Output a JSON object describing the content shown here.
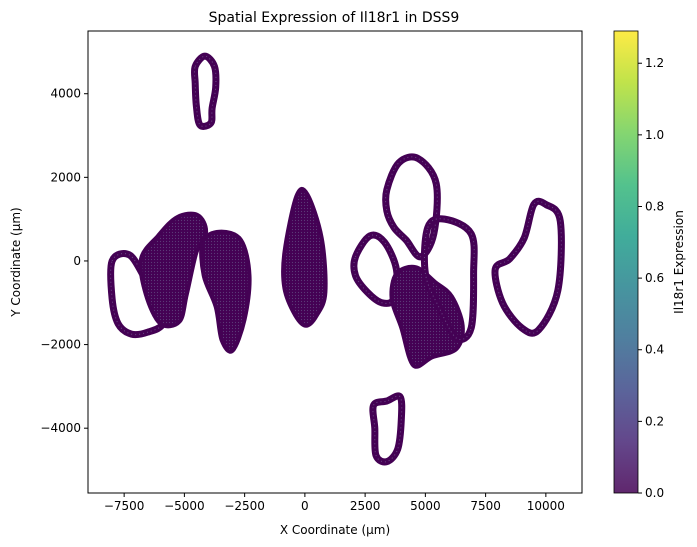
{
  "chart_data": {
    "type": "scatter",
    "title": "Spatial Expression of Il18r1 in DSS9",
    "xlabel": "X Coordinate (µm)",
    "ylabel": "Y Coordinate (µm)",
    "xlim": [
      -9000,
      11500
    ],
    "ylim": [
      -5550,
      5500
    ],
    "xticks": [
      -7500,
      -5000,
      -2500,
      0,
      2500,
      5000,
      7500,
      10000
    ],
    "xtick_labels": [
      "−7500",
      "−5000",
      "−2500",
      "0",
      "2500",
      "5000",
      "7500",
      "10000"
    ],
    "yticks": [
      -4000,
      -2000,
      0,
      2000,
      4000
    ],
    "ytick_labels": [
      "−4000",
      "−2000",
      "0",
      "2000",
      "4000"
    ],
    "grid": false,
    "colormap": "viridis",
    "point_color": "#440154",
    "colorbar": {
      "label": "Il18r1 Expression",
      "range": [
        0,
        1.29
      ],
      "ticks": [
        0.0,
        0.2,
        0.4,
        0.6,
        0.8,
        1.0,
        1.2
      ],
      "tick_labels": [
        "0.0",
        "0.2",
        "0.4",
        "0.6",
        "0.8",
        "1.0",
        "1.2"
      ],
      "colors": [
        "#440154",
        "#482777",
        "#3e4989",
        "#31688e",
        "#26828e",
        "#1f9e89",
        "#35b779",
        "#6ece58",
        "#b5de2b",
        "#fde725"
      ]
    },
    "tissue_sections": [
      {
        "name": "top-left",
        "type": "ring",
        "points": [
          [
            -4550,
            4650
          ],
          [
            -4150,
            4900
          ],
          [
            -3750,
            4650
          ],
          [
            -3700,
            4150
          ],
          [
            -3850,
            3650
          ],
          [
            -3900,
            3300
          ],
          [
            -4350,
            3250
          ],
          [
            -4500,
            3700
          ],
          [
            -4550,
            4250
          ]
        ]
      },
      {
        "name": "left-outer",
        "type": "ring",
        "points": [
          [
            -8000,
            0
          ],
          [
            -7300,
            150
          ],
          [
            -6700,
            -350
          ],
          [
            -6100,
            -1000
          ],
          [
            -5900,
            -1500
          ],
          [
            -6500,
            -1700
          ],
          [
            -7200,
            -1750
          ],
          [
            -7750,
            -1500
          ],
          [
            -8000,
            -900
          ]
        ]
      },
      {
        "name": "left-cluster",
        "type": "blob",
        "points": [
          [
            -6800,
            50
          ],
          [
            -6100,
            600
          ],
          [
            -5300,
            1050
          ],
          [
            -4450,
            1100
          ],
          [
            -4100,
            700
          ],
          [
            -4500,
            200
          ],
          [
            -4900,
            -800
          ],
          [
            -5200,
            -1450
          ],
          [
            -6000,
            -1500
          ],
          [
            -6600,
            -800
          ]
        ]
      },
      {
        "name": "left-inner",
        "type": "blob",
        "points": [
          [
            -4250,
            450
          ],
          [
            -3550,
            700
          ],
          [
            -2650,
            500
          ],
          [
            -2300,
            -350
          ],
          [
            -2500,
            -1400
          ],
          [
            -3000,
            -2150
          ],
          [
            -3450,
            -1900
          ],
          [
            -3700,
            -1100
          ],
          [
            -4200,
            -350
          ]
        ]
      },
      {
        "name": "center",
        "type": "blob",
        "points": [
          [
            -850,
            200
          ],
          [
            -350,
            1550
          ],
          [
            100,
            1600
          ],
          [
            700,
            550
          ],
          [
            850,
            -750
          ],
          [
            500,
            -1300
          ],
          [
            50,
            -1550
          ],
          [
            -400,
            -1300
          ],
          [
            -850,
            -650
          ]
        ]
      },
      {
        "name": "center-right-ring",
        "type": "ring",
        "points": [
          [
            2100,
            100
          ],
          [
            2700,
            600
          ],
          [
            3300,
            450
          ],
          [
            3800,
            -200
          ],
          [
            3700,
            -900
          ],
          [
            3200,
            -1000
          ],
          [
            2600,
            -750
          ],
          [
            2100,
            -350
          ]
        ]
      },
      {
        "name": "right-top",
        "type": "ring",
        "points": [
          [
            3400,
            1700
          ],
          [
            3900,
            2350
          ],
          [
            4700,
            2450
          ],
          [
            5450,
            1850
          ],
          [
            5350,
            650
          ],
          [
            4800,
            100
          ],
          [
            4200,
            500
          ],
          [
            3700,
            800
          ],
          [
            3400,
            1200
          ]
        ]
      },
      {
        "name": "right-middle",
        "type": "blob",
        "points": [
          [
            3800,
            -300
          ],
          [
            4600,
            -150
          ],
          [
            5400,
            -500
          ],
          [
            6100,
            -850
          ],
          [
            6550,
            -1550
          ],
          [
            6300,
            -2100
          ],
          [
            5300,
            -2300
          ],
          [
            4500,
            -2500
          ],
          [
            4000,
            -1600
          ],
          [
            3600,
            -900
          ]
        ]
      },
      {
        "name": "right-lower-ring",
        "type": "ring",
        "points": [
          [
            5100,
            800
          ],
          [
            5800,
            1000
          ],
          [
            6900,
            650
          ],
          [
            7000,
            -300
          ],
          [
            6900,
            -1600
          ],
          [
            6300,
            -1850
          ],
          [
            5600,
            -1150
          ],
          [
            5000,
            -300
          ]
        ]
      },
      {
        "name": "far-right",
        "type": "ring",
        "points": [
          [
            7900,
            -200
          ],
          [
            8500,
            50
          ],
          [
            9100,
            550
          ],
          [
            9500,
            1350
          ],
          [
            10000,
            1350
          ],
          [
            10600,
            950
          ],
          [
            10500,
            -700
          ],
          [
            9700,
            -1650
          ],
          [
            9000,
            -1600
          ],
          [
            8200,
            -1000
          ]
        ]
      },
      {
        "name": "bottom",
        "type": "ring",
        "points": [
          [
            2850,
            -3450
          ],
          [
            3400,
            -3350
          ],
          [
            3950,
            -3250
          ],
          [
            4000,
            -3800
          ],
          [
            3850,
            -4500
          ],
          [
            3400,
            -4800
          ],
          [
            2950,
            -4650
          ],
          [
            2900,
            -4000
          ]
        ]
      }
    ]
  }
}
